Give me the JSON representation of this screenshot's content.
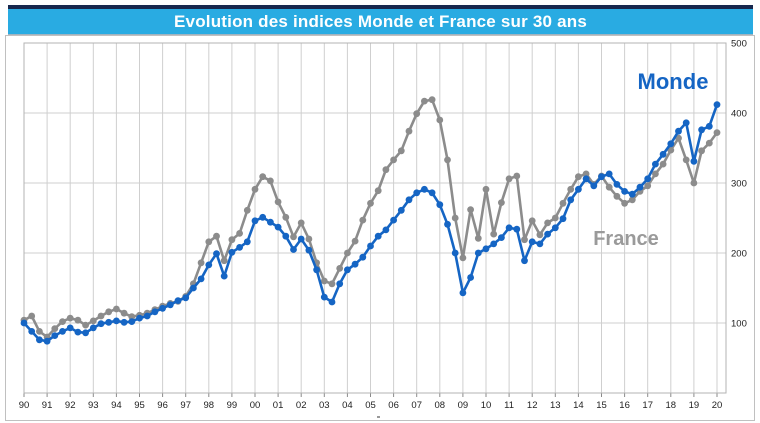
{
  "title": "Evolution des indices Monde et France sur 30 ans",
  "title_bar": {
    "background": "#29abe2",
    "top_border_color": "#17274d",
    "text_color": "#ffffff"
  },
  "annotations": {
    "monde": {
      "label": "Monde",
      "color": "#1565c4"
    },
    "france": {
      "label": "France",
      "color": "#9a9a9a"
    }
  },
  "chart_data": {
    "type": "line",
    "title": "Evolution des indices Monde et France sur 30 ans",
    "xlabel": "",
    "ylabel": "",
    "x_start_year": 1990,
    "points_per_year": 3,
    "x_tick_labels": [
      "90",
      "91",
      "92",
      "93",
      "94",
      "95",
      "96",
      "97",
      "98",
      "99",
      "00",
      "01",
      "02",
      "03",
      "04",
      "05",
      "06",
      "07",
      "08",
      "09",
      "10",
      "11",
      "12",
      "13",
      "14",
      "15",
      "16",
      "17",
      "18",
      "19",
      "20"
    ],
    "y_ticks": [
      100,
      200,
      300,
      400,
      500
    ],
    "ylim": [
      0,
      500
    ],
    "y_axis_side": "right",
    "grid": true,
    "colors": {
      "grid": "#cfcfcf",
      "plot_border": "#b3b3b3",
      "axis_text": "#222222"
    },
    "series": [
      {
        "name": "France",
        "color": "#8c8c8c",
        "values": [
          104,
          110,
          88,
          80,
          92,
          102,
          107,
          104,
          97,
          103,
          110,
          116,
          120,
          114,
          109,
          111,
          114,
          119,
          124,
          128,
          131,
          138,
          156,
          186,
          216,
          224,
          189,
          219,
          228,
          261,
          291,
          309,
          303,
          273,
          251,
          223,
          243,
          220,
          186,
          160,
          156,
          178,
          200,
          217,
          247,
          271,
          289,
          319,
          333,
          346,
          374,
          399,
          417,
          419,
          390,
          333,
          250,
          193,
          262,
          221,
          291,
          227,
          272,
          306,
          310,
          219,
          246,
          226,
          243,
          250,
          271,
          291,
          309,
          313,
          298,
          310,
          294,
          281,
          271,
          276,
          288,
          296,
          313,
          327,
          347,
          364,
          333,
          300,
          346,
          357,
          372
        ]
      },
      {
        "name": "Monde",
        "color": "#1565c4",
        "values": [
          100,
          88,
          76,
          74,
          82,
          88,
          93,
          87,
          86,
          93,
          99,
          101,
          103,
          101,
          102,
          107,
          110,
          116,
          121,
          126,
          132,
          136,
          150,
          163,
          183,
          199,
          167,
          201,
          208,
          216,
          246,
          251,
          244,
          237,
          224,
          205,
          220,
          204,
          176,
          137,
          130,
          156,
          176,
          184,
          194,
          210,
          224,
          233,
          247,
          261,
          276,
          286,
          291,
          286,
          269,
          241,
          200,
          143,
          165,
          200,
          206,
          213,
          222,
          236,
          234,
          189,
          216,
          213,
          227,
          236,
          249,
          276,
          291,
          306,
          296,
          309,
          313,
          298,
          288,
          284,
          294,
          306,
          327,
          341,
          356,
          374,
          386,
          331,
          376,
          381,
          412
        ]
      }
    ]
  }
}
